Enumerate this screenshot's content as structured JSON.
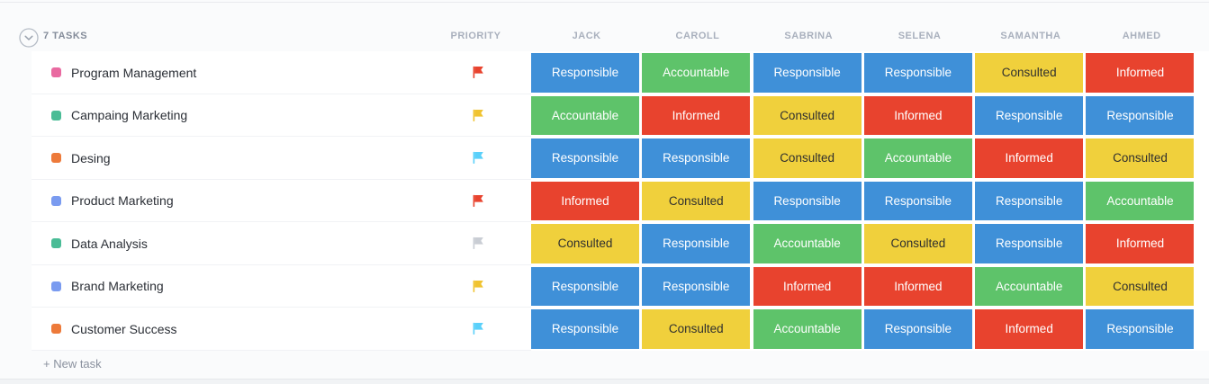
{
  "header": {
    "tasks_count_label": "7 TASKS",
    "priority_label": "PRIORITY",
    "people": [
      "JACK",
      "CAROLL",
      "SABRINA",
      "SELENA",
      "SAMANTHA",
      "AHMED"
    ]
  },
  "legend_styles": {
    "Responsible": {
      "bg": "#3f90d8",
      "text": "#ffffff"
    },
    "Accountable": {
      "bg": "#5ec36a",
      "text": "#ffffff"
    },
    "Consulted": {
      "bg": "#f0d03c",
      "text": "#2f2f2f"
    },
    "Informed": {
      "bg": "#e8432e",
      "text": "#ffffff"
    }
  },
  "rows": [
    {
      "task": "Program Management",
      "square_color": "#e96aa1",
      "flag_color": "#e8432e",
      "cells": [
        "Responsible",
        "Accountable",
        "Responsible",
        "Responsible",
        "Consulted",
        "Informed"
      ]
    },
    {
      "task": "Campaing Marketing",
      "square_color": "#4abc96",
      "flag_color": "#f0c330",
      "cells": [
        "Accountable",
        "Informed",
        "Consulted",
        "Informed",
        "Responsible",
        "Responsible"
      ]
    },
    {
      "task": "Desing",
      "square_color": "#ed7a3a",
      "flag_color": "#5ad0fa",
      "cells": [
        "Responsible",
        "Responsible",
        "Consulted",
        "Accountable",
        "Informed",
        "Consulted"
      ]
    },
    {
      "task": "Product Marketing",
      "square_color": "#7a9bf0",
      "flag_color": "#e8432e",
      "cells": [
        "Informed",
        "Consulted",
        "Responsible",
        "Responsible",
        "Responsible",
        "Accountable"
      ]
    },
    {
      "task": "Data Analysis",
      "square_color": "#4abc96",
      "flag_color": "#c9cdd4",
      "cells": [
        "Consulted",
        "Responsible",
        "Accountable",
        "Consulted",
        "Responsible",
        "Informed"
      ]
    },
    {
      "task": "Brand Marketing",
      "square_color": "#7a9bf0",
      "flag_color": "#f0c330",
      "cells": [
        "Responsible",
        "Responsible",
        "Informed",
        "Informed",
        "Accountable",
        "Consulted"
      ]
    },
    {
      "task": "Customer Success",
      "square_color": "#ed7a3a",
      "flag_color": "#5ad0fa",
      "cells": [
        "Responsible",
        "Consulted",
        "Accountable",
        "Responsible",
        "Informed",
        "Responsible"
      ]
    }
  ],
  "footer": {
    "new_task_label": "+ New task"
  }
}
